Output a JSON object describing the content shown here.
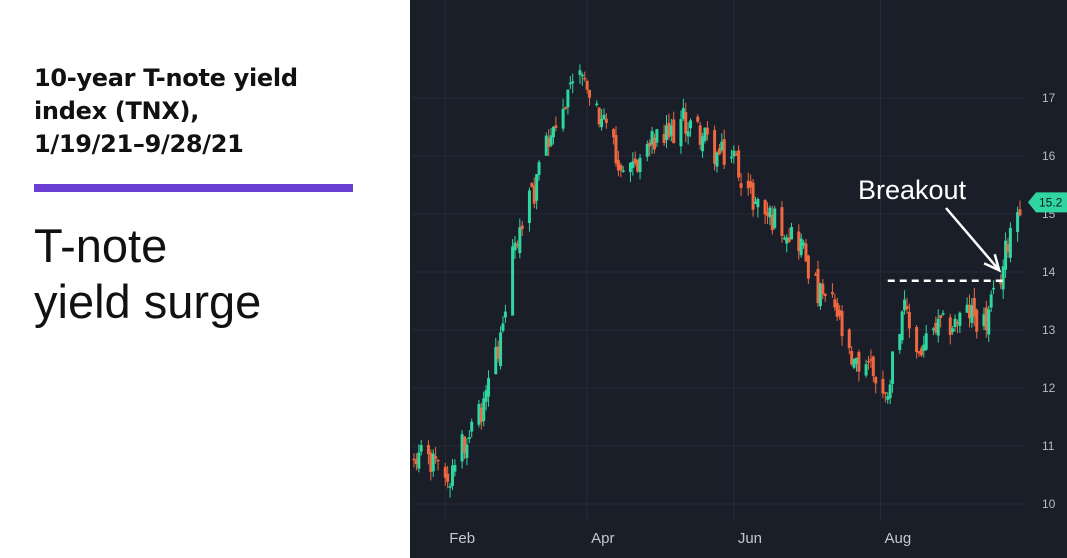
{
  "headline": "10-year T-note yield\nindex (TNX),\n1/19/21–9/28/21",
  "subtitle": "T-note\nyield surge",
  "colors": {
    "accent": "#6a3fd4",
    "background_chart": "#1a1e29",
    "up": "#2fd6a0",
    "down": "#f0683f",
    "annotation": "#ffffff"
  },
  "chart_data": {
    "type": "candlestick",
    "title": "",
    "xlabel": "",
    "ylabel": "",
    "x_tick_labels": [
      "Feb",
      "Apr",
      "Jun",
      "Aug"
    ],
    "x_tick_dates": [
      "2021-02-01",
      "2021-04-01",
      "2021-06-01",
      "2021-08-01"
    ],
    "y_ticks": [
      10,
      11,
      12,
      13,
      14,
      15,
      16,
      17
    ],
    "ylim": [
      9.7,
      17.7
    ],
    "grid": true,
    "y_axis_position": "right",
    "date_range": [
      "2021-01-19",
      "2021-09-28"
    ],
    "annotations": [
      {
        "text": "Breakout",
        "points_to_date": "2021-09-21",
        "points_to_value": 14.1
      }
    ],
    "reference_lines": [
      {
        "style": "dashed",
        "value": 13.85,
        "from_date": "2021-08-04",
        "to_date": "2021-09-21"
      }
    ],
    "last_price_label": "15.2",
    "series": [
      {
        "date": "2021-01-19",
        "close": 10.9
      },
      {
        "date": "2021-01-29",
        "close": 10.7
      },
      {
        "date": "2021-02-04",
        "close": 10.5
      },
      {
        "date": "2021-02-10",
        "close": 11.2
      },
      {
        "date": "2021-02-17",
        "close": 11.6
      },
      {
        "date": "2021-02-24",
        "close": 12.8
      },
      {
        "date": "2021-03-01",
        "close": 14.2
      },
      {
        "date": "2021-03-05",
        "close": 14.8
      },
      {
        "date": "2021-03-10",
        "close": 15.4
      },
      {
        "date": "2021-03-16",
        "close": 16.3
      },
      {
        "date": "2021-03-22",
        "close": 17.0
      },
      {
        "date": "2021-03-30",
        "close": 17.3
      },
      {
        "date": "2021-04-06",
        "close": 16.7
      },
      {
        "date": "2021-04-13",
        "close": 16.0
      },
      {
        "date": "2021-04-20",
        "close": 15.8
      },
      {
        "date": "2021-04-27",
        "close": 16.2
      },
      {
        "date": "2021-05-04",
        "close": 16.3
      },
      {
        "date": "2021-05-11",
        "close": 16.6
      },
      {
        "date": "2021-05-18",
        "close": 16.4
      },
      {
        "date": "2021-05-25",
        "close": 16.0
      },
      {
        "date": "2021-06-01",
        "close": 16.0
      },
      {
        "date": "2021-06-08",
        "close": 15.3
      },
      {
        "date": "2021-06-15",
        "close": 15.0
      },
      {
        "date": "2021-06-22",
        "close": 14.8
      },
      {
        "date": "2021-06-29",
        "close": 14.5
      },
      {
        "date": "2021-07-06",
        "close": 13.6
      },
      {
        "date": "2021-07-13",
        "close": 13.4
      },
      {
        "date": "2021-07-20",
        "close": 12.3
      },
      {
        "date": "2021-07-27",
        "close": 12.5
      },
      {
        "date": "2021-08-03",
        "close": 11.8
      },
      {
        "date": "2021-08-10",
        "close": 13.4
      },
      {
        "date": "2021-08-17",
        "close": 12.6
      },
      {
        "date": "2021-08-24",
        "close": 13.0
      },
      {
        "date": "2021-08-31",
        "close": 13.1
      },
      {
        "date": "2021-09-07",
        "close": 13.3
      },
      {
        "date": "2021-09-14",
        "close": 13.1
      },
      {
        "date": "2021-09-21",
        "close": 14.1
      },
      {
        "date": "2021-09-24",
        "close": 14.8
      },
      {
        "date": "2021-09-28",
        "close": 15.2
      }
    ]
  }
}
